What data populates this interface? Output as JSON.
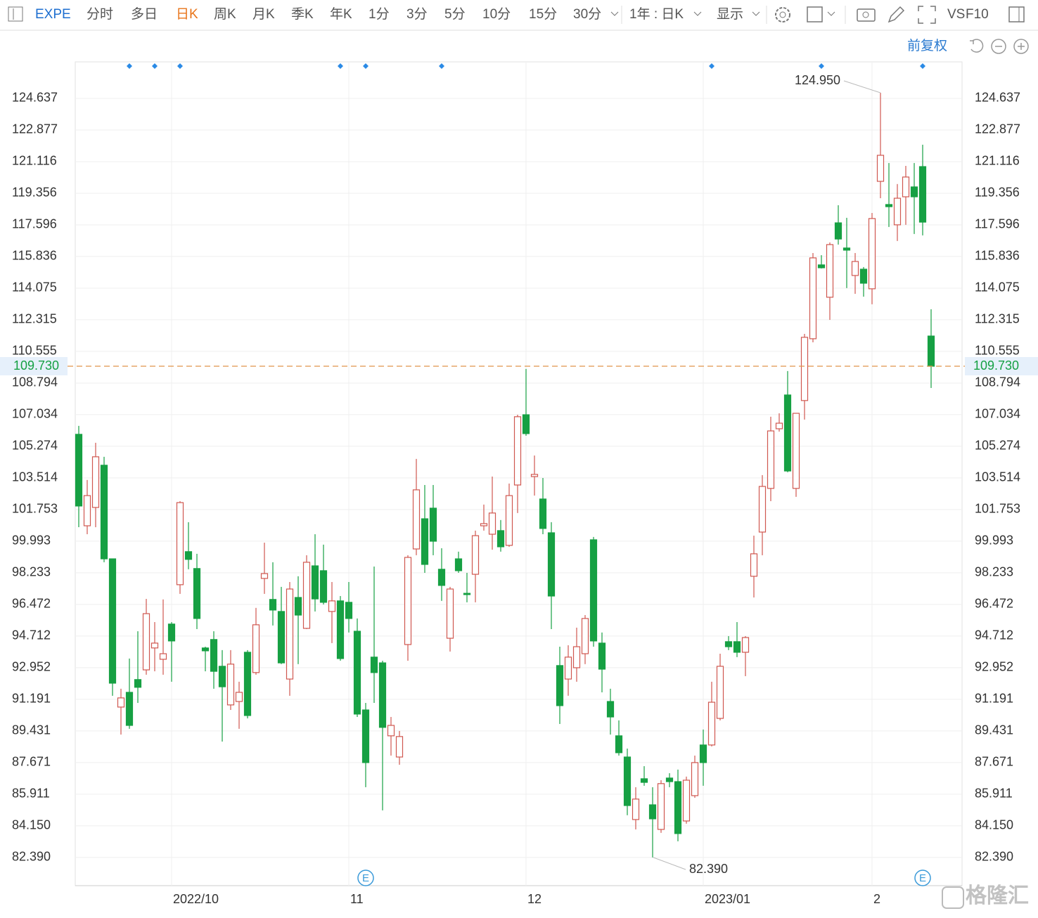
{
  "toolbar": {
    "symbol": "EXPE",
    "periods": [
      "分时",
      "多日",
      "日K",
      "周K",
      "月K",
      "季K",
      "年K",
      "1分",
      "3分",
      "5分",
      "10分",
      "15分",
      "30分"
    ],
    "active_period": "日K",
    "range": "1年 : 日K",
    "display": "显示",
    "vs": "VS",
    "f10": "F10"
  },
  "adjust": "前复权",
  "watermark": "格隆汇",
  "chart_data": {
    "type": "candlestick",
    "categories": [
      null,
      null,
      null,
      null,
      null,
      null,
      null,
      null,
      null,
      null,
      null,
      "2022/10",
      null,
      null,
      null,
      null,
      null,
      null,
      null,
      null,
      null,
      null,
      null,
      null,
      null,
      null,
      null,
      null,
      null,
      null,
      null,
      null,
      "11",
      null,
      null,
      null,
      null,
      null,
      null,
      null,
      null,
      null,
      null,
      null,
      null,
      null,
      null,
      null,
      null,
      null,
      null,
      null,
      null,
      "12",
      null,
      null,
      null,
      null,
      null,
      null,
      null,
      null,
      null,
      null,
      null,
      null,
      null,
      null,
      null,
      null,
      null,
      null,
      null,
      null,
      "2023/01",
      null,
      null,
      null,
      null,
      null,
      null,
      null,
      null,
      null,
      null,
      null,
      null,
      null,
      null,
      null,
      null,
      null,
      null,
      null,
      "2",
      null,
      null,
      null,
      null,
      null,
      null,
      null
    ],
    "open": [
      105.94,
      100.85,
      101.87,
      104.22,
      99.01,
      90.76,
      91.58,
      92.29,
      92.83,
      94.05,
      93.42,
      95.38,
      97.57,
      99.41,
      98.47,
      94.05,
      94.52,
      93.03,
      90.88,
      91.07,
      93.81,
      92.68,
      97.92,
      96.75,
      96.08,
      92.32,
      96.86,
      95.14,
      98.62,
      98.35,
      96.08,
      96.67,
      96.59,
      94.98,
      90.6,
      93.54,
      93.22,
      89.16,
      87.98,
      94.24,
      99.56,
      101.24,
      101.83,
      98.43,
      94.59,
      99.01,
      97.09,
      98.15,
      100.85,
      100.38,
      100.58,
      99.76,
      103.12,
      107.03,
      103.59,
      102.34,
      100.46,
      93.07,
      92.32,
      92.95,
      93.73,
      100.07,
      94.32,
      91.07,
      89.16,
      87.98,
      84.5,
      86.77,
      85.32,
      83.95,
      86.81,
      86.61,
      84.42,
      85.83,
      88.65,
      88.65,
      90.13,
      94.4,
      94.4,
      93.81,
      98.04,
      100.5,
      102.93,
      106.25,
      108.13,
      102.93,
      107.82,
      111.26,
      115.37,
      113.57,
      117.71,
      116.31,
      114.78,
      115.13,
      114.04,
      120.02,
      118.73,
      117.6,
      119.16,
      119.71,
      120.84,
      111.41
    ],
    "high": [
      106.41,
      103.4,
      105.47,
      104.69,
      99.01,
      91.78,
      93.46,
      94.98,
      96.78,
      95.49,
      96.75,
      95.49,
      102.22,
      101.05,
      99.29,
      94.12,
      94.98,
      93.93,
      93.93,
      92.17,
      93.93,
      96.28,
      99.91,
      98.82,
      97.45,
      97.72,
      98.04,
      99.21,
      100.38,
      99.8,
      97.72,
      96.94,
      97.72,
      95.69,
      90.99,
      98.58,
      93.34,
      90.21,
      89.43,
      99.21,
      104.57,
      103.12,
      103.12,
      99.6,
      97.45,
      99.41,
      98.23,
      100.58,
      102.03,
      103.59,
      101.17,
      103.2,
      107.03,
      109.58,
      104.76,
      103.51,
      101.05,
      94.12,
      94.2,
      95.18,
      95.88,
      100.23,
      94.91,
      91.78,
      90.02,
      88.45,
      86.3,
      87.47,
      86.3,
      86.69,
      87.08,
      87.28,
      86.89,
      88.06,
      89.51,
      92.17,
      93.73,
      94.71,
      95.49,
      94.71,
      100.3,
      103.67,
      106.92,
      107.11,
      109.46,
      107.11,
      111.53,
      116.03,
      115.91,
      116.62,
      118.69,
      117.99,
      116.03,
      115.25,
      118.26,
      124.95,
      121.04,
      119.87,
      120.88,
      121.04,
      122.06,
      112.9
    ],
    "low": [
      100.77,
      100.38,
      100.77,
      98.82,
      91.39,
      89.23,
      89.55,
      90.99,
      92.56,
      92.75,
      92.56,
      92.17,
      97.06,
      98.43,
      95.1,
      92.75,
      91.78,
      88.84,
      90.6,
      89.55,
      90.13,
      92.56,
      97.06,
      95.3,
      93.15,
      91.39,
      93.15,
      95.1,
      96.08,
      96.47,
      94.32,
      93.34,
      94.91,
      90.21,
      86.3,
      90.99,
      85.01,
      88.06,
      87.55,
      93.34,
      99.21,
      98.23,
      99.21,
      96.67,
      93.85,
      98.23,
      96.59,
      96.59,
      100.58,
      99.52,
      99.41,
      99.68,
      101.56,
      105.86,
      102.53,
      100.38,
      95.1,
      89.82,
      91.39,
      92.17,
      93.15,
      94.12,
      91.58,
      89.23,
      88.06,
      84.74,
      83.95,
      86.38,
      82.39,
      83.76,
      86.3,
      83.29,
      84.27,
      85.71,
      86.38,
      88.57,
      90.02,
      93.93,
      93.54,
      92.48,
      96.86,
      99.21,
      102.22,
      106.09,
      103.83,
      102.46,
      106.76,
      111.06,
      115.17,
      112.31,
      116.5,
      114.08,
      113.76,
      113.6,
      113.18,
      119.08,
      117.48,
      116.7,
      117.6,
      117.09,
      117.01,
      108.52
    ],
    "close": [
      101.95,
      102.53,
      104.69,
      99.01,
      92.09,
      91.27,
      89.74,
      91.86,
      95.96,
      94.32,
      93.73,
      94.44,
      102.14,
      98.98,
      95.69,
      93.89,
      92.75,
      91.89,
      93.15,
      91.58,
      90.29,
      95.34,
      98.19,
      96.16,
      93.22,
      97.33,
      95.88,
      98.82,
      96.78,
      96.59,
      96.67,
      93.46,
      95.69,
      90.37,
      87.67,
      92.68,
      89.63,
      89.74,
      89.12,
      99.09,
      102.85,
      98.7,
      99.99,
      97.53,
      97.33,
      98.35,
      97.02,
      100.3,
      100.97,
      101.56,
      99.68,
      102.53,
      106.92,
      105.98,
      103.71,
      100.7,
      96.94,
      90.84,
      93.54,
      94.12,
      95.69,
      94.44,
      92.87,
      90.21,
      88.22,
      85.28,
      85.64,
      86.57,
      84.54,
      86.5,
      86.61,
      83.72,
      86.69,
      87.67,
      87.67,
      91.03,
      93.03,
      94.12,
      93.81,
      94.63,
      99.29,
      103.04,
      106.13,
      106.56,
      103.9,
      107.11,
      111.34,
      115.76,
      115.21,
      116.5,
      116.81,
      116.19,
      115.56,
      114.35,
      117.95,
      121.47,
      118.61,
      119.08,
      120.26,
      119.16,
      117.75,
      109.73
    ],
    "up_color": "#d0574f",
    "down_color": "#16a043",
    "last_color": "#e0944a",
    "ylim": [
      80.82,
      126.67
    ],
    "yticks": [
      124.637,
      122.877,
      121.116,
      119.356,
      117.596,
      115.836,
      114.075,
      112.315,
      110.555,
      108.794,
      107.034,
      105.274,
      103.514,
      101.753,
      99.993,
      98.233,
      96.472,
      94.712,
      92.952,
      91.191,
      89.431,
      87.671,
      85.911,
      {
        "value": 84.15,
        "label": "84.150"
      },
      {
        "value": 82.39,
        "label": "82.390"
      }
    ],
    "grid": true,
    "last_price": {
      "value": 109.73,
      "label": "109.730"
    },
    "annotations": [
      {
        "value": 124.95,
        "label": "124.950"
      },
      {
        "value": 82.39,
        "label": "82.390"
      }
    ],
    "event_labels": [
      "E",
      "E"
    ]
  }
}
